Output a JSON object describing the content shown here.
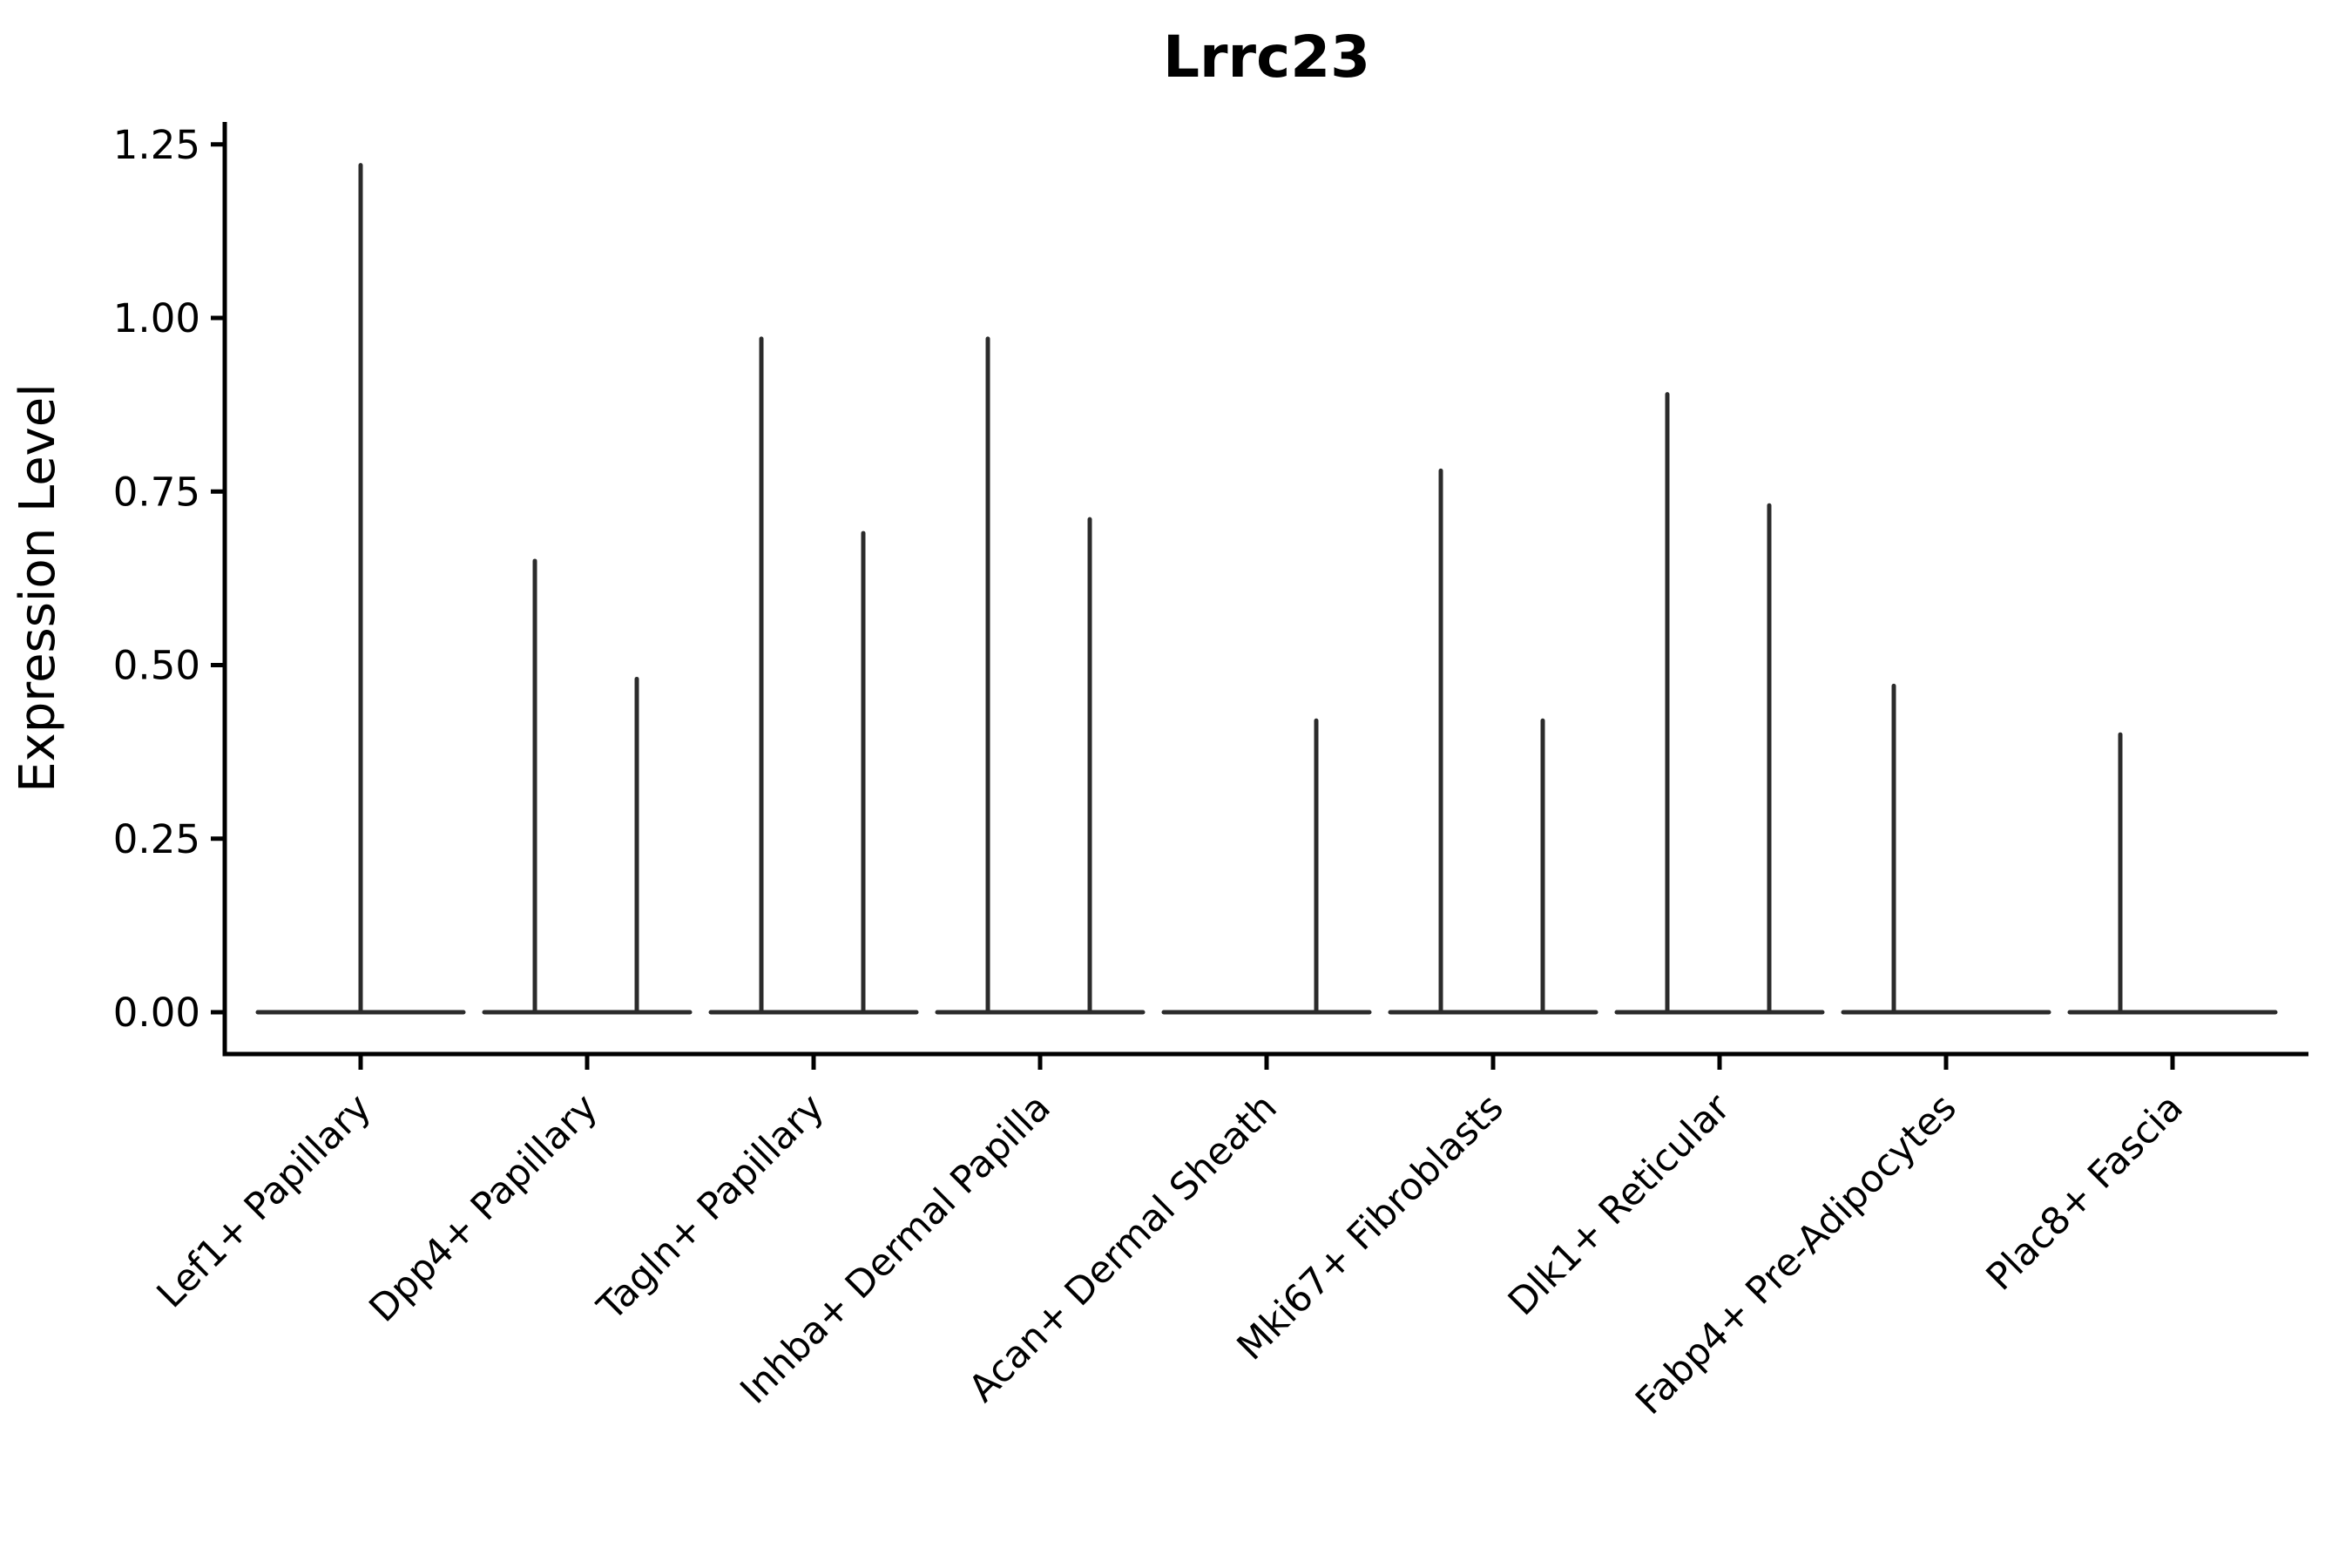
{
  "chart_data": {
    "type": "violin",
    "title": "Lrrc23",
    "xlabel": "",
    "ylabel": "Expression Level",
    "ylim": [
      0,
      1.28
    ],
    "grid": false,
    "legend": null,
    "background_color": "#ffffff",
    "axis_color": "#000000",
    "ink_color": "#2b2b2b",
    "y_ticks": [
      {
        "value": 0.0,
        "label": "0.00"
      },
      {
        "value": 0.25,
        "label": "0.25"
      },
      {
        "value": 0.5,
        "label": "0.50"
      },
      {
        "value": 0.75,
        "label": "0.75"
      },
      {
        "value": 1.0,
        "label": "1.00"
      },
      {
        "value": 1.25,
        "label": "1.25"
      }
    ],
    "categories": [
      "Lef1+ Papillary",
      "Dpp4+ Papillary",
      "Tagln+ Papillary",
      "Inhba+ Dermal Papilla",
      "Acan+ Dermal Sheath",
      "Mki67+ Fibroblasts",
      "Dlk1+ Reticular",
      "Fabp4+ Pre-Adipocytes",
      "Plac8+ Fascia"
    ],
    "violins": [
      {
        "category": "Lef1+ Papillary",
        "baseline_value": 0,
        "spikes": [
          {
            "position": "center",
            "value": 1.22
          }
        ]
      },
      {
        "category": "Dpp4+ Papillary",
        "baseline_value": 0,
        "spikes": [
          {
            "position": "left",
            "value": 0.65
          },
          {
            "position": "right",
            "value": 0.48
          }
        ]
      },
      {
        "category": "Tagln+ Papillary",
        "baseline_value": 0,
        "spikes": [
          {
            "position": "left",
            "value": 0.97
          },
          {
            "position": "right",
            "value": 0.69
          }
        ]
      },
      {
        "category": "Inhba+ Dermal Papilla",
        "baseline_value": 0,
        "spikes": [
          {
            "position": "left",
            "value": 0.97
          },
          {
            "position": "right",
            "value": 0.71
          }
        ]
      },
      {
        "category": "Acan+ Dermal Sheath",
        "baseline_value": 0,
        "spikes": [
          {
            "position": "right",
            "value": 0.42
          }
        ]
      },
      {
        "category": "Mki67+ Fibroblasts",
        "baseline_value": 0,
        "spikes": [
          {
            "position": "left",
            "value": 0.78
          },
          {
            "position": "right",
            "value": 0.42
          }
        ]
      },
      {
        "category": "Dlk1+ Reticular",
        "baseline_value": 0,
        "spikes": [
          {
            "position": "left",
            "value": 0.89
          },
          {
            "position": "right",
            "value": 0.73
          }
        ]
      },
      {
        "category": "Fabp4+ Pre-Adipocytes",
        "baseline_value": 0,
        "spikes": [
          {
            "position": "left",
            "value": 0.47
          }
        ]
      },
      {
        "category": "Plac8+ Fascia",
        "baseline_value": 0,
        "spikes": [
          {
            "position": "left",
            "value": 0.4
          }
        ]
      }
    ]
  }
}
